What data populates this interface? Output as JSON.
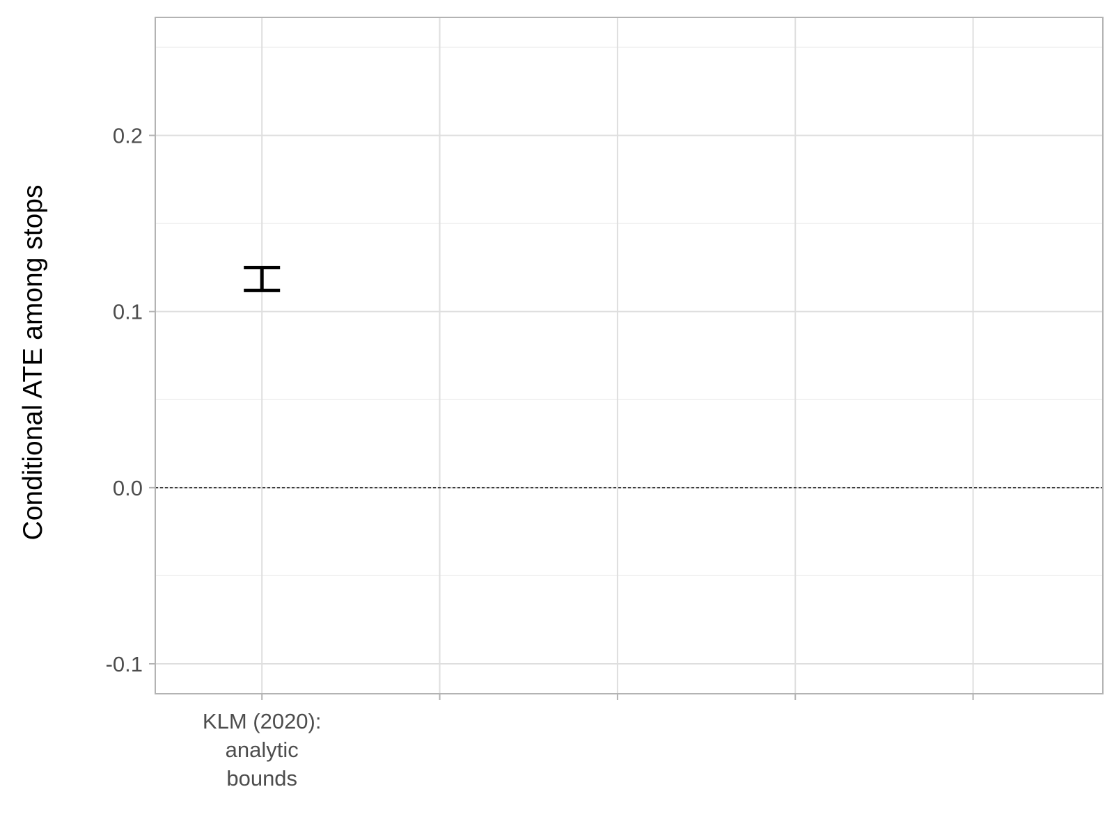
{
  "chart_data": {
    "type": "errorbar",
    "title": "",
    "xlabel": "",
    "ylabel": "Conditional ATE among stops",
    "ylim": [
      -0.117,
      0.267
    ],
    "y_ticks": [
      -0.1,
      0.0,
      0.1,
      0.2
    ],
    "y_tick_labels": [
      "-0.1",
      "0.0",
      "0.1",
      "0.2"
    ],
    "categories": [
      [
        "KLM (2020):",
        "analytic",
        "bounds"
      ],
      [
        ""
      ],
      [
        ""
      ],
      [
        ""
      ],
      [
        ""
      ]
    ],
    "intervals": [
      {
        "category_index": 0,
        "lower": 0.112,
        "upper": 0.125
      }
    ],
    "reference_line": {
      "y": 0.0,
      "style": "dashed",
      "color": "#000000"
    },
    "grid": true,
    "legend": "none",
    "colors": {
      "interval": "#000000",
      "grid": "#dedede",
      "panel_border": "#b3b3b3",
      "tick_label": "#4d4d4d"
    }
  }
}
